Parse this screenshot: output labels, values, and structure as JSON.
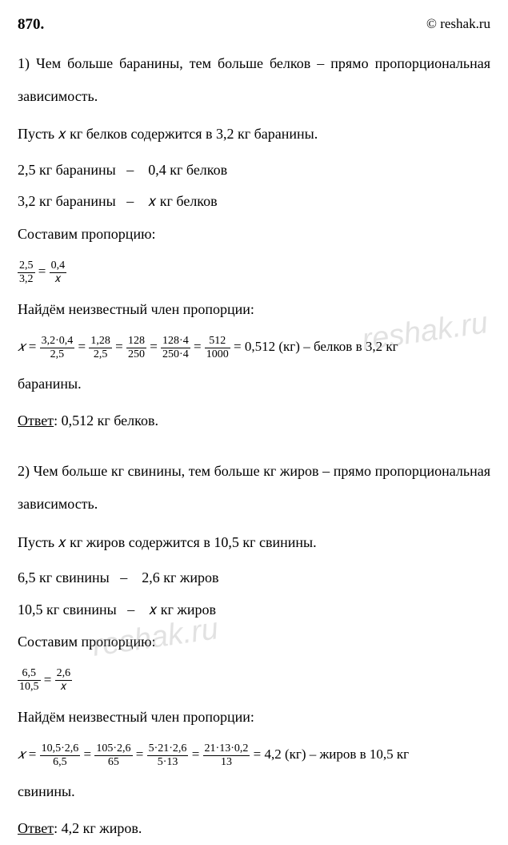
{
  "header": {
    "number": "870.",
    "copyright": "© reshak.ru"
  },
  "watermark": "reshak.ru",
  "part1": {
    "intro": "1) Чем больше баранины, тем больше белков – прямо пропорциональная зависимость.",
    "let": "Пусть 𝑥 кг белков содержится в 3,2 кг баранины.",
    "row1_left": "2,5 кг баранины",
    "row1_right": "0,4 кг белков",
    "row2_left": "3,2 кг баранины",
    "row2_right": "𝑥 кг белков",
    "compose": "Составим пропорцию:",
    "prop_num1": "2,5",
    "prop_den1": "3,2",
    "prop_num2": "0,4",
    "prop_den2": "𝑥",
    "find": "Найдём неизвестный член пропорции:",
    "f1n": "3,2·0,4",
    "f1d": "2,5",
    "f2n": "1,28",
    "f2d": "2,5",
    "f3n": "128",
    "f3d": "250",
    "f4n": "128·4",
    "f4d": "250·4",
    "f5n": "512",
    "f5d": "1000",
    "result": "= 0,512 (кг) – белков в 3,2 кг",
    "result2": "баранины.",
    "answer_label": "Ответ",
    "answer": ": 0,512 кг белков."
  },
  "part2": {
    "intro": "2) Чем больше кг свинины, тем больше кг жиров – прямо пропорциональная зависимость.",
    "let": "Пусть 𝑥 кг жиров содержится в 10,5 кг свинины.",
    "row1_left": "6,5 кг свинины",
    "row1_right": "2,6 кг жиров",
    "row2_left": "10,5 кг свинины",
    "row2_right": "𝑥 кг жиров",
    "compose": "Составим пропорцию:",
    "prop_num1": "6,5",
    "prop_den1": "10,5",
    "prop_num2": "2,6",
    "prop_den2": "𝑥",
    "find": "Найдём неизвестный член пропорции:",
    "f1n": "10,5·2,6",
    "f1d": "6,5",
    "f2n": "105·2,6",
    "f2d": "65",
    "f3n": "5·21·2,6",
    "f3d": "5·13",
    "f4n": "21·13·0,2",
    "f4d": "13",
    "result": "= 4,2 (кг) – жиров в 10,5 кг",
    "result2": "свинины.",
    "answer_label": "Ответ",
    "answer": ": 4,2 кг жиров."
  }
}
